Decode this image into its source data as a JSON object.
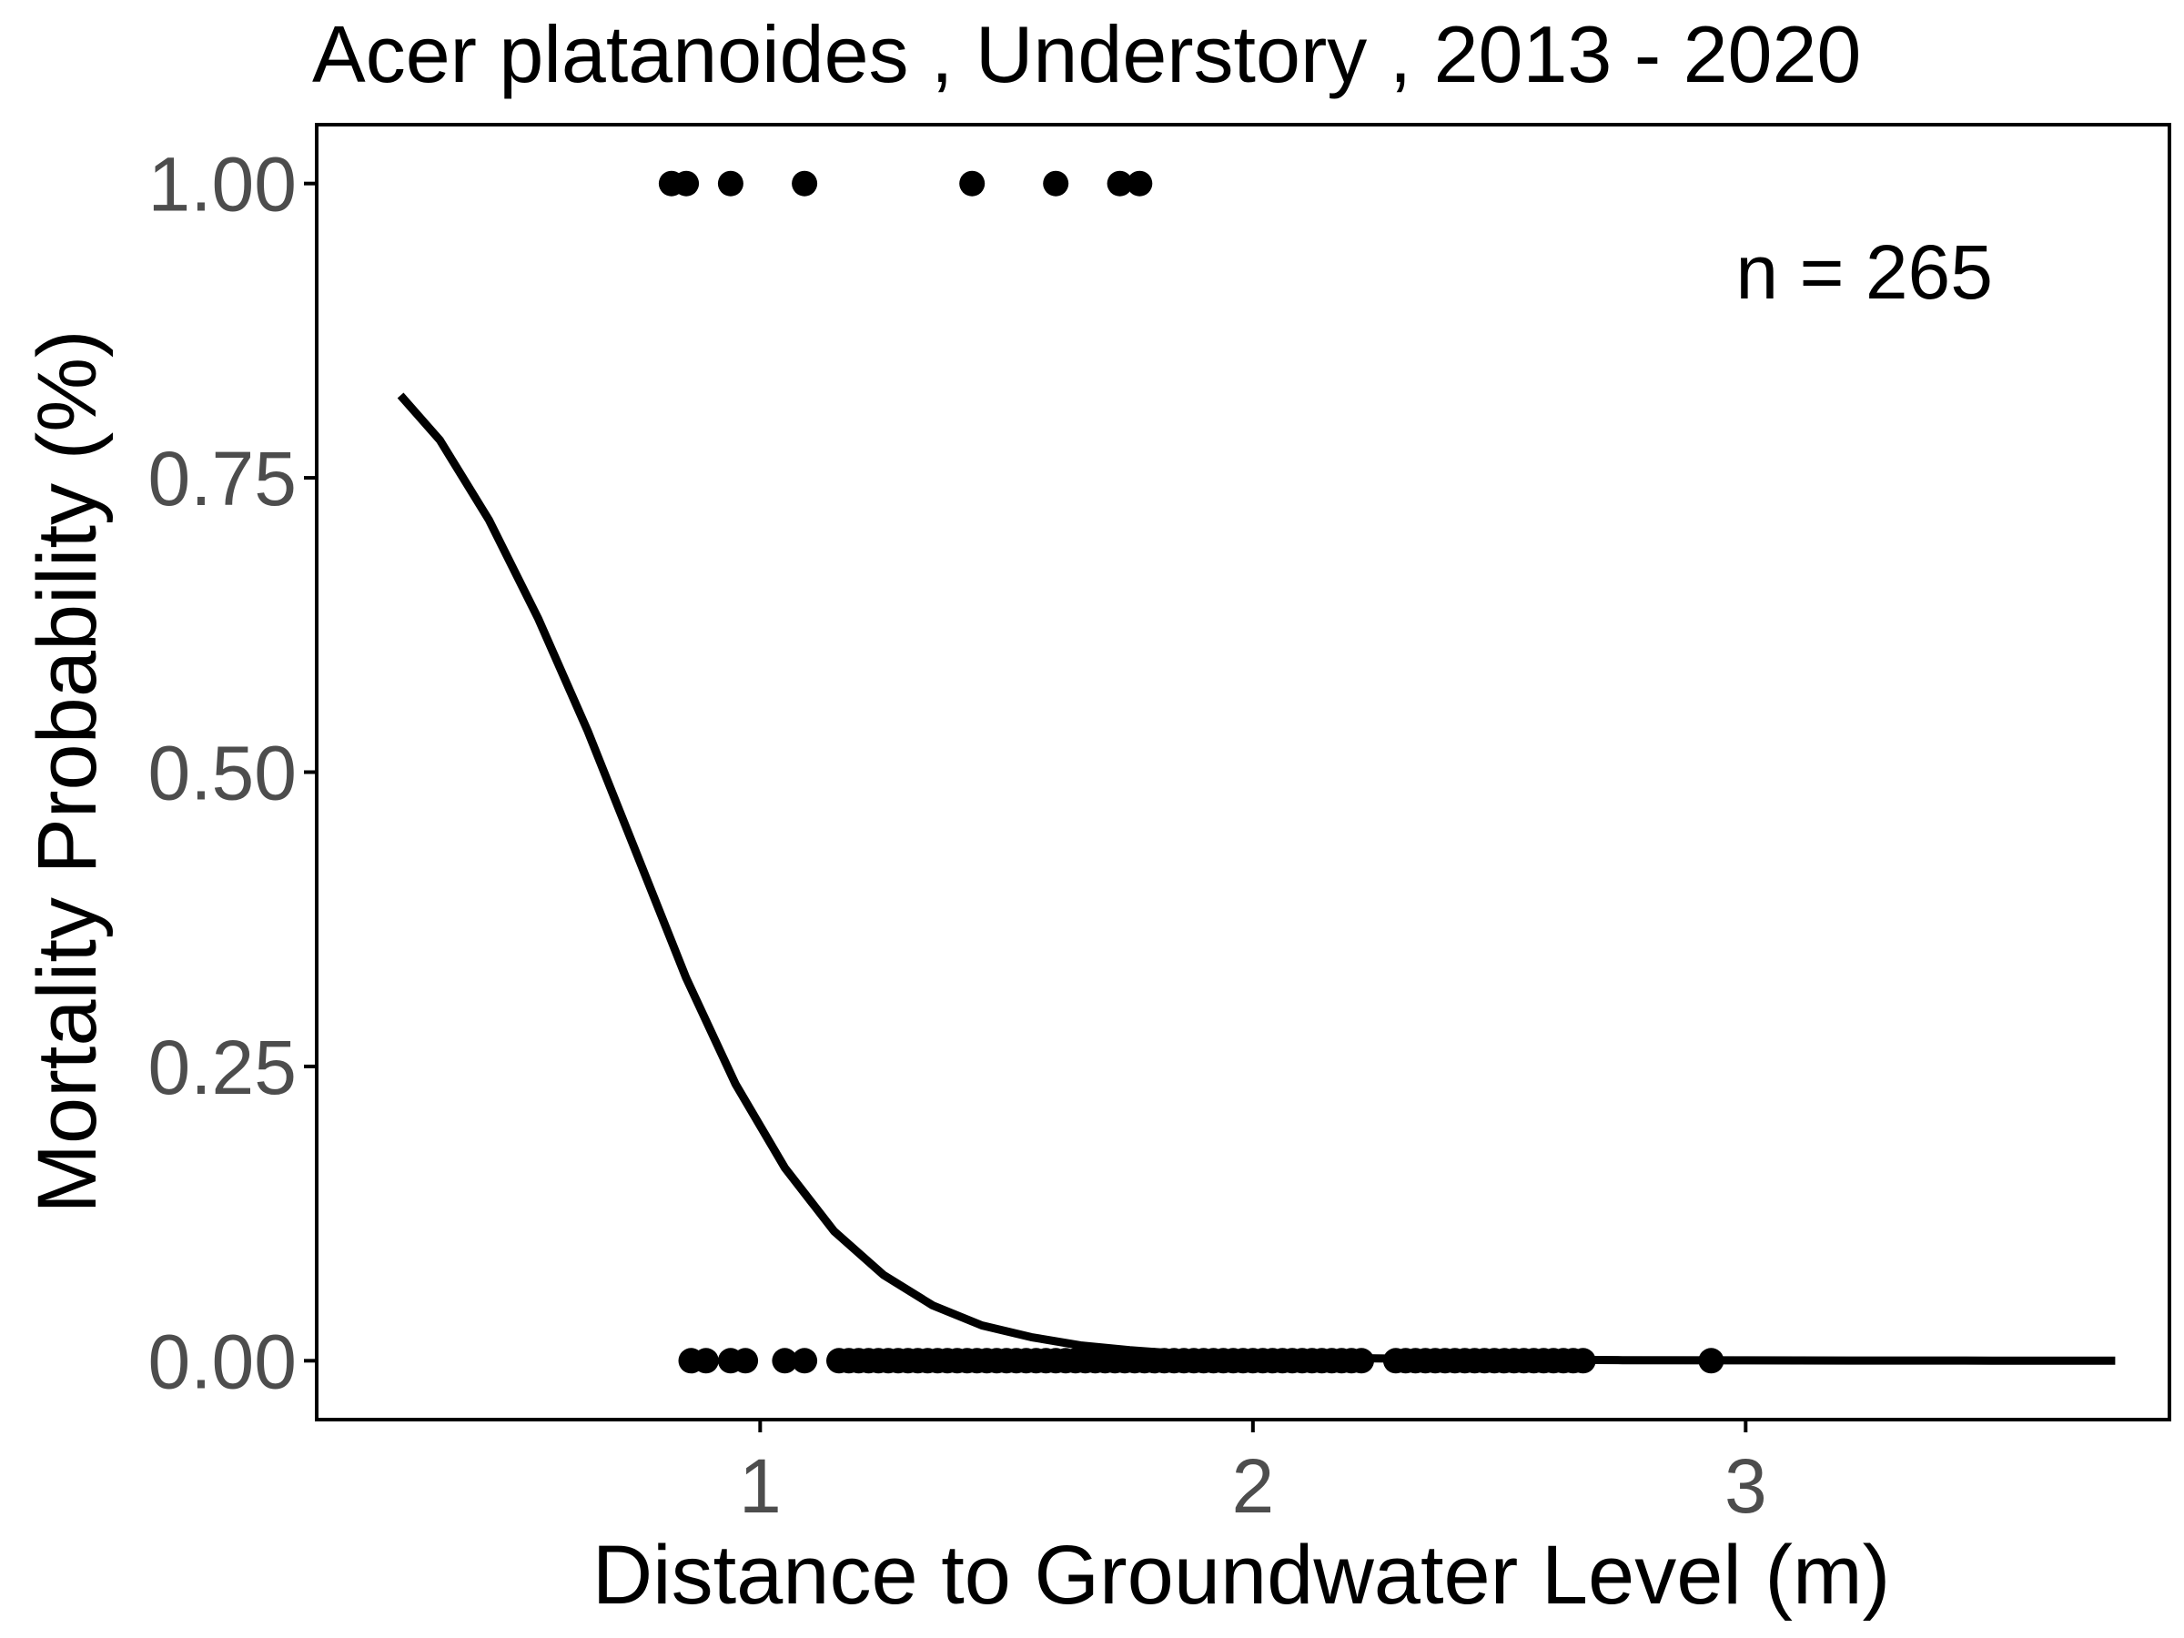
{
  "chart_data": {
    "type": "scatter",
    "title": "Acer platanoides , Understory , 2013 - 2020",
    "xlabel": "Distance to Groundwater Level (m)",
    "ylabel": "Mortality Probability (%)",
    "xlim": [
      0.1,
      3.86
    ],
    "ylim": [
      -0.05,
      1.05
    ],
    "x_ticks": [
      1,
      2,
      3
    ],
    "x_tick_labels": [
      "1",
      "2",
      "3"
    ],
    "y_ticks": [
      0,
      0.25,
      0.5,
      0.75,
      1
    ],
    "y_tick_labels": [
      "0.00",
      "0.25",
      "0.50",
      "0.75",
      "1.00"
    ],
    "grid": false,
    "annotation": "n =  265",
    "colors": {
      "points": "#000000",
      "line": "#000000",
      "frame": "#000000"
    },
    "series": [
      {
        "kind": "points",
        "points": [
          [
            0.82,
            1
          ],
          [
            0.85,
            1
          ],
          [
            0.94,
            1
          ],
          [
            1.09,
            1
          ],
          [
            1.43,
            1
          ],
          [
            1.6,
            1
          ],
          [
            1.73,
            1
          ],
          [
            1.77,
            1
          ],
          [
            0.86,
            0
          ],
          [
            0.89,
            0
          ],
          [
            0.94,
            0
          ],
          [
            0.97,
            0
          ],
          [
            1.05,
            0
          ],
          [
            1.09,
            0
          ],
          [
            1.16,
            0
          ],
          [
            1.18,
            0
          ],
          [
            1.2,
            0
          ],
          [
            1.22,
            0
          ],
          [
            1.24,
            0
          ],
          [
            1.26,
            0
          ],
          [
            1.28,
            0
          ],
          [
            1.3,
            0
          ],
          [
            1.32,
            0
          ],
          [
            1.34,
            0
          ],
          [
            1.36,
            0
          ],
          [
            1.38,
            0
          ],
          [
            1.4,
            0
          ],
          [
            1.42,
            0
          ],
          [
            1.44,
            0
          ],
          [
            1.46,
            0
          ],
          [
            1.48,
            0
          ],
          [
            1.5,
            0
          ],
          [
            1.52,
            0
          ],
          [
            1.54,
            0
          ],
          [
            1.56,
            0
          ],
          [
            1.58,
            0
          ],
          [
            1.6,
            0
          ],
          [
            1.62,
            0
          ],
          [
            1.64,
            0
          ],
          [
            1.66,
            0
          ],
          [
            1.68,
            0
          ],
          [
            1.7,
            0
          ],
          [
            1.72,
            0
          ],
          [
            1.74,
            0
          ],
          [
            1.76,
            0
          ],
          [
            1.78,
            0
          ],
          [
            1.8,
            0
          ],
          [
            1.82,
            0
          ],
          [
            1.84,
            0
          ],
          [
            1.86,
            0
          ],
          [
            1.88,
            0
          ],
          [
            1.9,
            0
          ],
          [
            1.92,
            0
          ],
          [
            1.94,
            0
          ],
          [
            1.96,
            0
          ],
          [
            1.98,
            0
          ],
          [
            2.0,
            0
          ],
          [
            2.02,
            0
          ],
          [
            2.04,
            0
          ],
          [
            2.06,
            0
          ],
          [
            2.08,
            0
          ],
          [
            2.1,
            0
          ],
          [
            2.12,
            0
          ],
          [
            2.14,
            0
          ],
          [
            2.16,
            0
          ],
          [
            2.18,
            0
          ],
          [
            2.2,
            0
          ],
          [
            2.22,
            0
          ],
          [
            2.29,
            0
          ],
          [
            2.31,
            0
          ],
          [
            2.33,
            0
          ],
          [
            2.35,
            0
          ],
          [
            2.37,
            0
          ],
          [
            2.39,
            0
          ],
          [
            2.41,
            0
          ],
          [
            2.43,
            0
          ],
          [
            2.45,
            0
          ],
          [
            2.47,
            0
          ],
          [
            2.49,
            0
          ],
          [
            2.51,
            0
          ],
          [
            2.53,
            0
          ],
          [
            2.55,
            0
          ],
          [
            2.57,
            0
          ],
          [
            2.59,
            0
          ],
          [
            2.61,
            0
          ],
          [
            2.63,
            0
          ],
          [
            2.65,
            0
          ],
          [
            2.67,
            0
          ],
          [
            2.93,
            0
          ]
        ]
      },
      {
        "kind": "fit-line",
        "x": [
          0.27,
          0.35,
          0.45,
          0.55,
          0.65,
          0.75,
          0.85,
          0.95,
          1.05,
          1.15,
          1.25,
          1.35,
          1.45,
          1.55,
          1.65,
          1.75,
          1.85,
          2.0,
          2.25,
          2.5,
          2.75,
          3.0,
          3.25,
          3.5,
          3.75
        ],
        "y": [
          0.82,
          0.782,
          0.714,
          0.63,
          0.535,
          0.43,
          0.325,
          0.235,
          0.164,
          0.11,
          0.073,
          0.047,
          0.03,
          0.02,
          0.013,
          0.009,
          0.006,
          0.004,
          0.002,
          0.001,
          0.0005,
          0.0003,
          0.0002,
          0.0001,
          0.0001
        ]
      }
    ]
  }
}
